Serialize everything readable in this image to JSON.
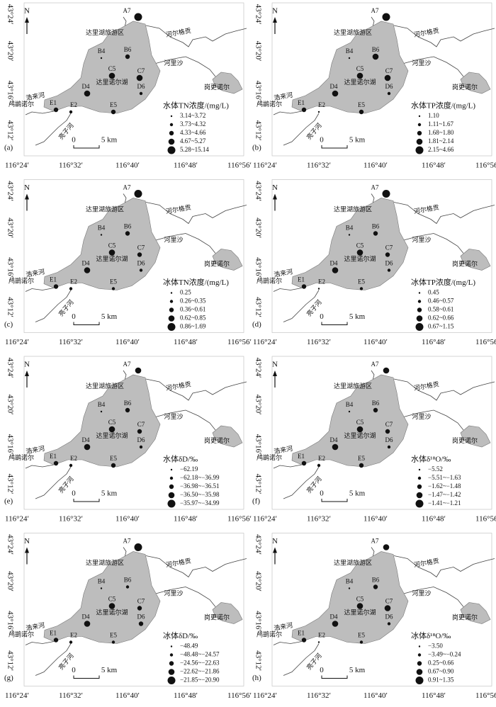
{
  "map": {
    "north": "N",
    "lat_labels": [
      "43°24′",
      "43°20′",
      "43°16′",
      "43°12′"
    ],
    "lon_labels": [
      "116°24′",
      "116°32′",
      "116°40′",
      "116°48′",
      "116°56′"
    ],
    "places": [
      "达里湖旅游区",
      "河尔格贡",
      "河里沙",
      "岗更诺尔",
      "达里诺尔湖",
      "浩来河",
      "鸬鹚诺尔",
      "亮子河"
    ],
    "stations": [
      "A7",
      "B4",
      "B6",
      "C5",
      "C7",
      "D4",
      "D6",
      "E1",
      "E2",
      "E5"
    ],
    "scale_zero": "0",
    "scale_label": "5 km"
  },
  "panels": [
    {
      "letter": "(a)",
      "legend_title": "水体TN浓度/(mg/L)",
      "legend_items": [
        "3.14~3.72",
        "3.73~4.32",
        "4.33~4.66",
        "4.67~5.27",
        "5.28~15.14"
      ],
      "station_classes": [
        5,
        1,
        3,
        4,
        4,
        4,
        2,
        3,
        2,
        3
      ]
    },
    {
      "letter": "(b)",
      "legend_title": "水体TP浓度/(mg/L)",
      "legend_items": [
        "1.10",
        "1.11~1.67",
        "1.68~1.80",
        "1.81~2.14",
        "2.15~4.66"
      ],
      "station_classes": [
        5,
        1,
        4,
        4,
        4,
        4,
        2,
        3,
        1,
        3
      ]
    },
    {
      "letter": "(c)",
      "legend_title": "冰体TN浓度/(mg/L)",
      "legend_items": [
        "0.25",
        "0.26~0.35",
        "0.36~0.61",
        "0.62~0.85",
        "0.86~1.69"
      ],
      "station_classes": [
        5,
        1,
        3,
        4,
        3,
        4,
        2,
        3,
        2,
        2
      ]
    },
    {
      "letter": "(d)",
      "legend_title": "冰体TP浓度/(mg/L)",
      "legend_items": [
        "0.45",
        "0.46~0.57",
        "0.58~0.61",
        "0.62~0.66",
        "0.67~1.15"
      ],
      "station_classes": [
        5,
        1,
        3,
        4,
        3,
        4,
        2,
        3,
        1,
        2
      ]
    },
    {
      "letter": "(e)",
      "legend_title": "水体δD/‰",
      "legend_items": [
        "−62.19",
        "−62.18~−36.99",
        "−36.98~−36.51",
        "−36.50~−35.98",
        "−35.97~−34.99"
      ],
      "station_classes": [
        4,
        1,
        3,
        4,
        3,
        4,
        2,
        3,
        2,
        3
      ]
    },
    {
      "letter": "(f)",
      "legend_title": "水体δ¹⁸O/‰",
      "legend_items": [
        "−5.52",
        "−5.51~−1.63",
        "−1.62~−1.48",
        "−1.47~−1.42",
        "−1.41~−1.21"
      ],
      "station_classes": [
        4,
        1,
        3,
        4,
        3,
        4,
        2,
        3,
        2,
        3
      ]
    },
    {
      "letter": "(g)",
      "legend_title": "冰体δD/‰",
      "legend_items": [
        "−48.49",
        "−48.48~−24.57",
        "−24.56~−22.63",
        "−22.62~−21.86",
        "−21.85~−20.90"
      ],
      "station_classes": [
        5,
        1,
        2,
        4,
        3,
        4,
        3,
        3,
        2,
        2
      ]
    },
    {
      "letter": "(h)",
      "legend_title": "冰体δ¹⁸O/‰",
      "legend_items": [
        "−3.50",
        "−3.49~−0.24",
        "0.25~0.66",
        "0.67~0.90",
        "0.91~1.35"
      ],
      "station_classes": [
        4,
        1,
        3,
        4,
        4,
        4,
        2,
        3,
        1,
        2
      ]
    }
  ]
}
